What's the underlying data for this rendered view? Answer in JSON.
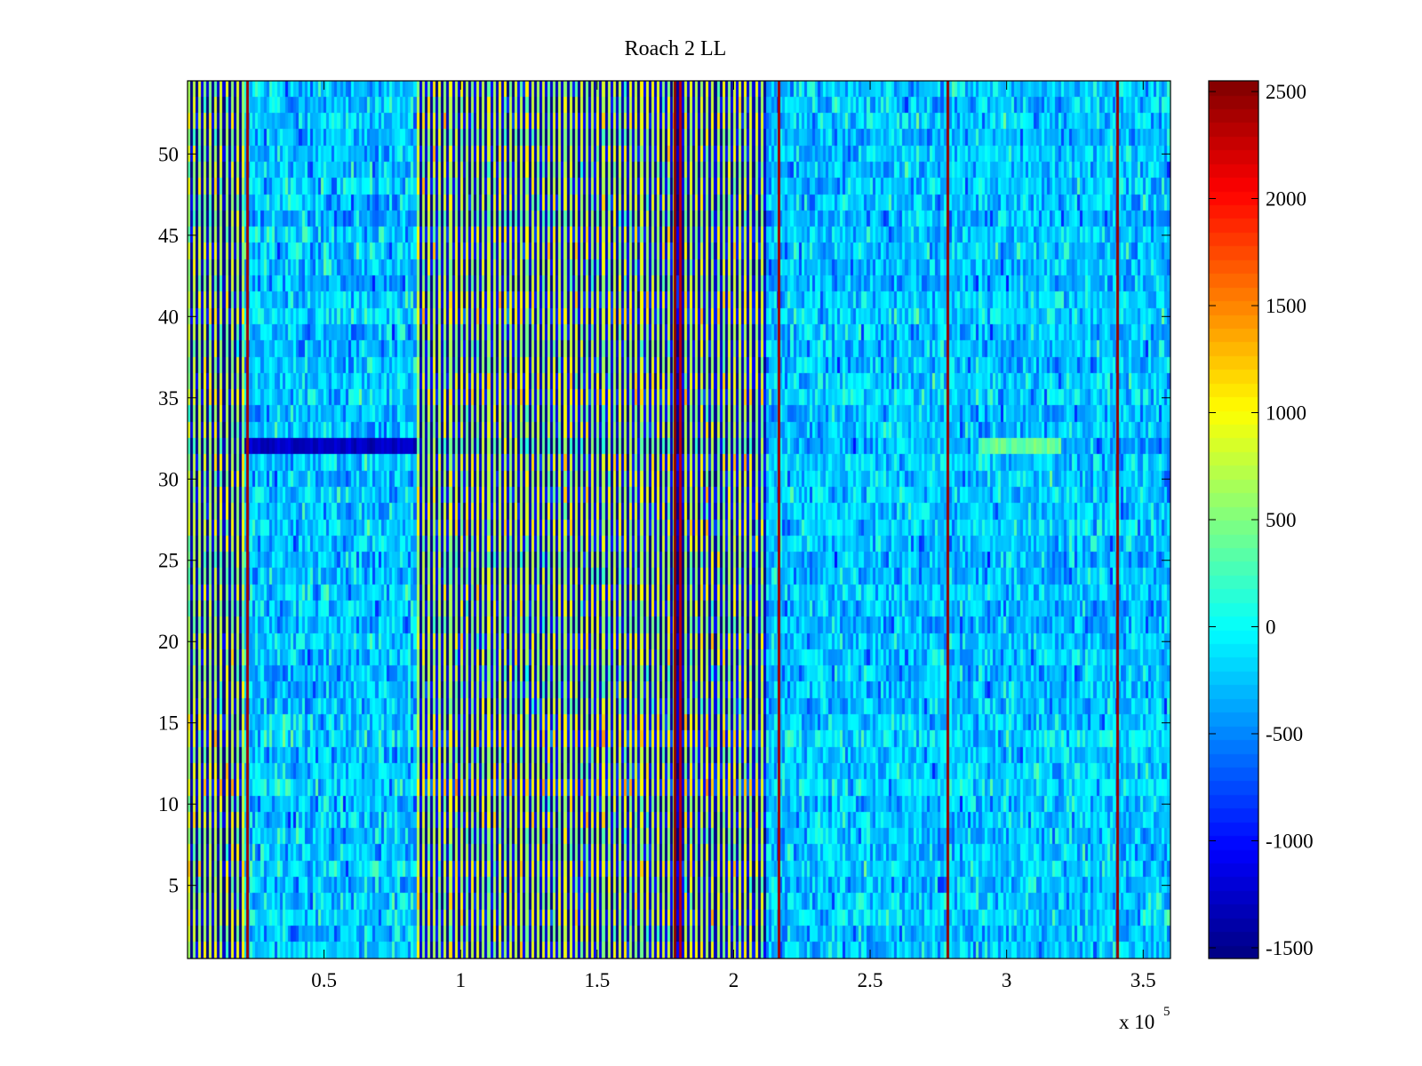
{
  "chart_data": {
    "type": "heatmap",
    "title": "Roach 2 LL",
    "xlabel": "",
    "ylabel": "",
    "xlim": [
      0,
      360000
    ],
    "ylim": [
      0.5,
      54.5
    ],
    "x_multiplier": "x 10",
    "x_multiplier_exponent": "5",
    "x_ticks": [
      {
        "value": 50000,
        "label": "0.5"
      },
      {
        "value": 100000,
        "label": "1"
      },
      {
        "value": 150000,
        "label": "1.5"
      },
      {
        "value": 200000,
        "label": "2"
      },
      {
        "value": 250000,
        "label": "2.5"
      },
      {
        "value": 300000,
        "label": "3"
      },
      {
        "value": 350000,
        "label": "3.5"
      }
    ],
    "y_ticks": [
      {
        "value": 5,
        "label": "5"
      },
      {
        "value": 10,
        "label": "10"
      },
      {
        "value": 15,
        "label": "15"
      },
      {
        "value": 20,
        "label": "20"
      },
      {
        "value": 25,
        "label": "25"
      },
      {
        "value": 30,
        "label": "30"
      },
      {
        "value": 35,
        "label": "35"
      },
      {
        "value": 40,
        "label": "40"
      },
      {
        "value": 45,
        "label": "45"
      },
      {
        "value": 50,
        "label": "50"
      }
    ],
    "rows": 54,
    "colorbar": {
      "colormap": "jet",
      "clim": [
        -1550,
        2550
      ],
      "ticks": [
        {
          "value": 2500,
          "label": "2500"
        },
        {
          "value": 2000,
          "label": "2000"
        },
        {
          "value": 1500,
          "label": "1500"
        },
        {
          "value": 1000,
          "label": "1000"
        },
        {
          "value": 500,
          "label": "500"
        },
        {
          "value": 0,
          "label": "0"
        },
        {
          "value": -500,
          "label": "-500"
        },
        {
          "value": -1000,
          "label": "-1000"
        },
        {
          "value": -1500,
          "label": "-1500"
        }
      ]
    },
    "regions": [
      {
        "x_start": 0,
        "x_end": 21000,
        "pattern": "alternating",
        "mean": -400,
        "spread": 1500
      },
      {
        "x_start": 21000,
        "x_end": 84000,
        "pattern": "noise",
        "mean": -250,
        "spread": 350
      },
      {
        "x_start": 84000,
        "x_end": 212000,
        "pattern": "alternating",
        "mean": -300,
        "spread": 1400
      },
      {
        "x_start": 212000,
        "x_end": 360000,
        "pattern": "noise",
        "mean": -250,
        "spread": 320
      }
    ],
    "vertical_lines": [
      {
        "x": 21500,
        "value": 2400
      },
      {
        "x": 178000,
        "value": 2500
      },
      {
        "x": 180000,
        "value": 2300
      },
      {
        "x": 216000,
        "value": 2400
      },
      {
        "x": 278000,
        "value": 2450
      },
      {
        "x": 340000,
        "value": 2450
      }
    ],
    "horizontal_bands": [
      {
        "row": 32,
        "x_start": 21000,
        "x_end": 84000,
        "value": -1250
      },
      {
        "row": 32,
        "x_start": 290000,
        "x_end": 320000,
        "value": 400
      }
    ],
    "grid": false,
    "legend": "none"
  }
}
